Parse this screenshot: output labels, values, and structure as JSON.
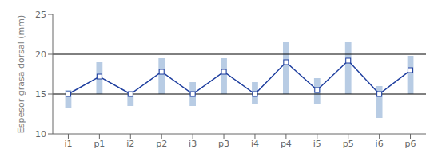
{
  "chart_data": {
    "type": "bar",
    "ylabel": "Espesor grasa dorsal (mm)",
    "categories": [
      "i1",
      "p1",
      "i2",
      "p2",
      "i3",
      "p3",
      "i4",
      "p4",
      "i5",
      "p5",
      "i6",
      "p6"
    ],
    "series": [
      {
        "type": "bar",
        "color": "#b8cce4",
        "low": [
          13.2,
          15.0,
          13.5,
          15.0,
          13.5,
          15.0,
          13.8,
          15.0,
          13.8,
          15.0,
          12.0,
          15.0
        ],
        "high": [
          15.5,
          19.0,
          15.2,
          19.5,
          16.5,
          19.5,
          16.5,
          21.5,
          17.0,
          21.5,
          16.0,
          19.8
        ]
      },
      {
        "type": "line",
        "color": "#1f3f9f",
        "marker": "square",
        "values": [
          15.0,
          17.2,
          15.0,
          17.8,
          15.0,
          17.8,
          15.0,
          19.0,
          15.5,
          19.2,
          15.0,
          18.0
        ]
      }
    ],
    "hlines": {
      "values": [
        15,
        20
      ],
      "color": "#000000"
    },
    "ylim": [
      10,
      25
    ],
    "yticks": [
      10,
      15,
      20,
      25
    ],
    "grid": false
  }
}
